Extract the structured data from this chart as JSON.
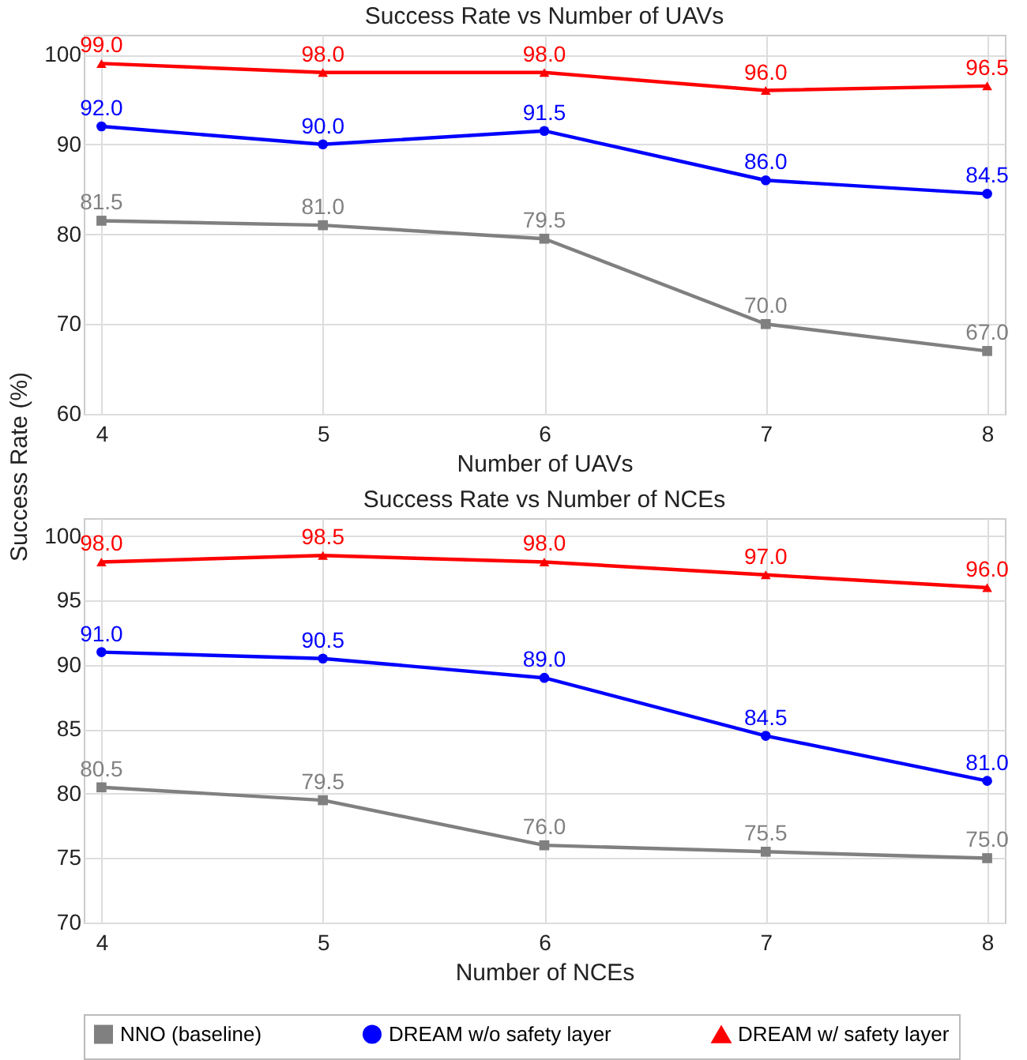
{
  "chart_data": [
    {
      "type": "line",
      "title": "Success Rate vs Number of UAVs",
      "xlabel": "Number of UAVs",
      "ylabel": "Success Rate (%)",
      "x": [
        4,
        5,
        6,
        7,
        8
      ],
      "xlim": [
        3.92,
        8.08
      ],
      "xticks": [
        4,
        5,
        6,
        7,
        8
      ],
      "ylim": [
        60,
        102.2
      ],
      "yticks": [
        60,
        70,
        80,
        90,
        100
      ],
      "grid": true,
      "legend": "bottom",
      "series": [
        {
          "name": "NNO (baseline)",
          "color": "#808080",
          "marker": "square",
          "values": [
            81.5,
            81.0,
            79.5,
            70.0,
            67.0
          ],
          "value_labels": [
            "81.5",
            "81.0",
            "79.5",
            "70.0",
            "67.0"
          ]
        },
        {
          "name": "DREAM w/o safety layer",
          "color": "#0000ff",
          "marker": "circle",
          "values": [
            92.0,
            90.0,
            91.5,
            86.0,
            84.5
          ],
          "value_labels": [
            "92.0",
            "90.0",
            "91.5",
            "86.0",
            "84.5"
          ]
        },
        {
          "name": "DREAM w/ safety layer",
          "color": "#ff0000",
          "marker": "triangle",
          "values": [
            99.0,
            98.0,
            98.0,
            96.0,
            96.5
          ],
          "value_labels": [
            "99.0",
            "98.0",
            "98.0",
            "96.0",
            "96.5"
          ]
        }
      ]
    },
    {
      "type": "line",
      "title": "Success Rate vs Number of NCEs",
      "xlabel": "Number of NCEs",
      "x": [
        4,
        5,
        6,
        7,
        8
      ],
      "xlim": [
        3.92,
        8.08
      ],
      "xticks": [
        4,
        5,
        6,
        7,
        8
      ],
      "ylim": [
        70,
        101.4
      ],
      "yticks": [
        70,
        75,
        80,
        85,
        90,
        95,
        100
      ],
      "grid": true,
      "legend": "bottom",
      "series": [
        {
          "name": "NNO (baseline)",
          "color": "#808080",
          "marker": "square",
          "values": [
            80.5,
            79.5,
            76.0,
            75.5,
            75.0
          ],
          "value_labels": [
            "80.5",
            "79.5",
            "76.0",
            "75.5",
            "75.0"
          ]
        },
        {
          "name": "DREAM w/o safety layer",
          "color": "#0000ff",
          "marker": "circle",
          "values": [
            91.0,
            90.5,
            89.0,
            84.5,
            81.0
          ],
          "value_labels": [
            "91.0",
            "90.5",
            "89.0",
            "84.5",
            "81.0"
          ]
        },
        {
          "name": "DREAM w/ safety layer",
          "color": "#ff0000",
          "marker": "triangle",
          "values": [
            98.0,
            98.5,
            98.0,
            97.0,
            96.0
          ],
          "value_labels": [
            "98.0",
            "98.5",
            "98.0",
            "97.0",
            "96.0"
          ]
        }
      ]
    }
  ]
}
